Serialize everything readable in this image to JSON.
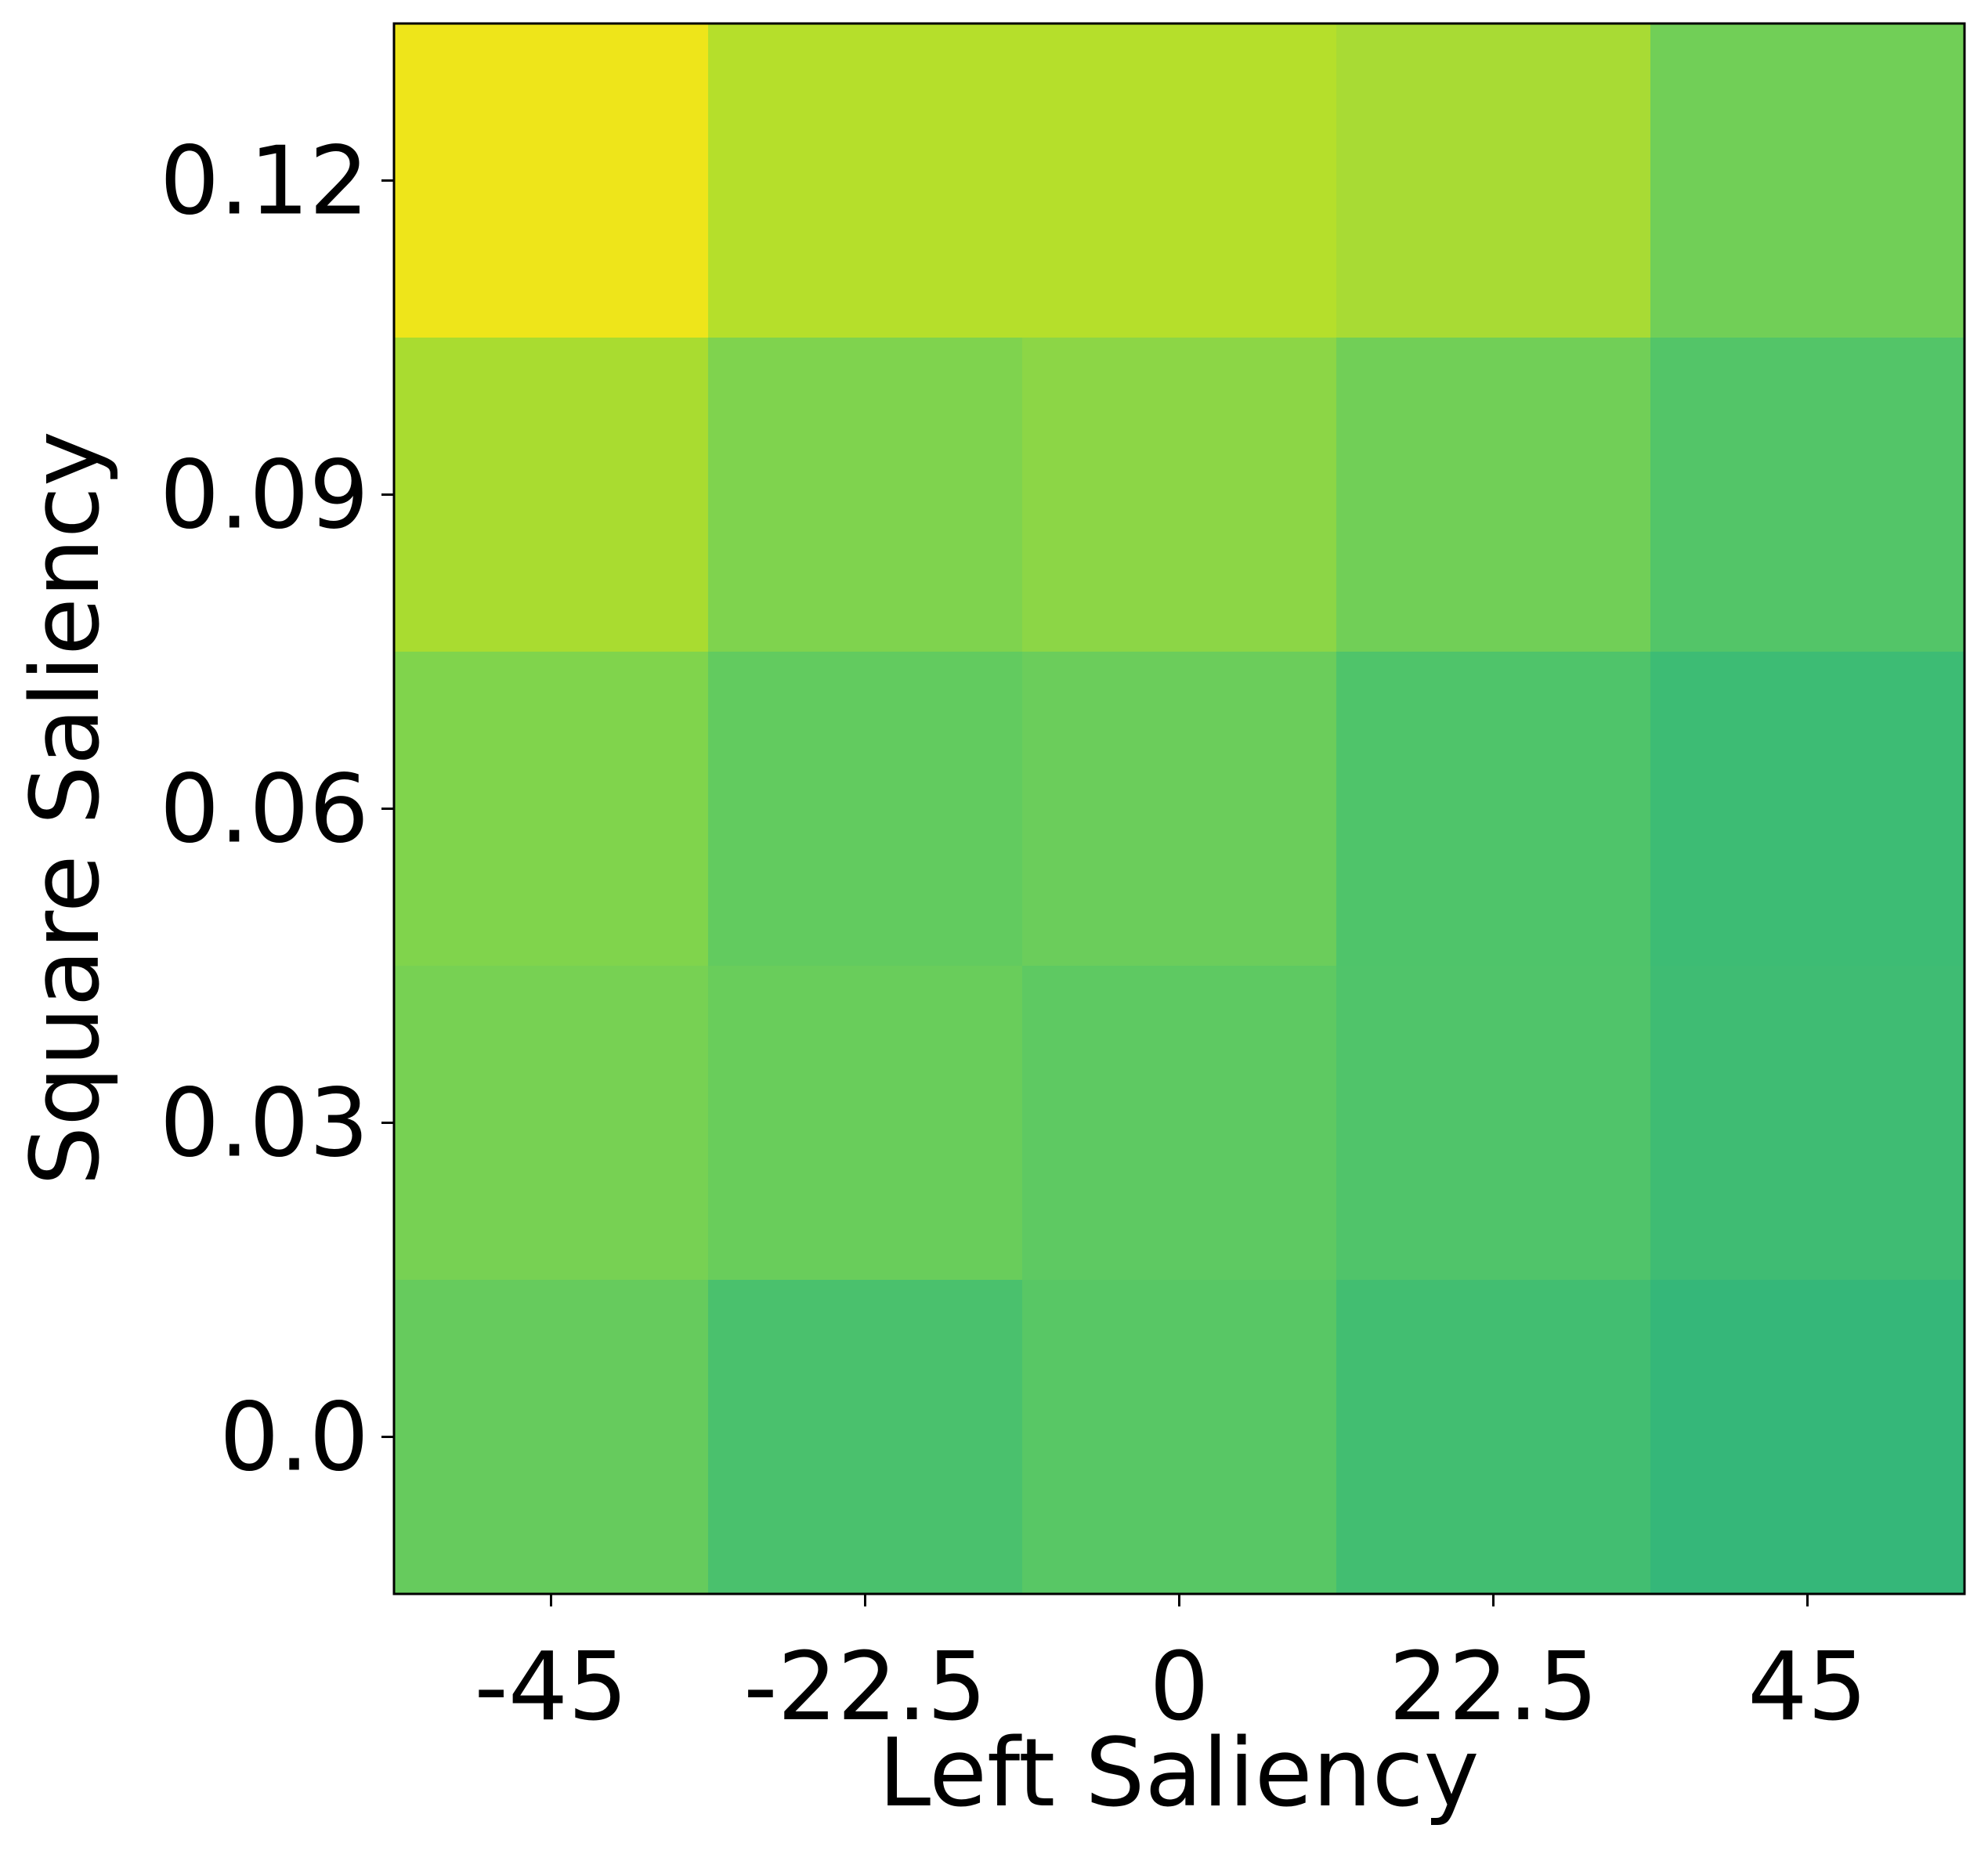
{
  "chart_data": {
    "type": "heatmap",
    "title": "",
    "xlabel": "Left Saliency",
    "ylabel": "Square Saliency",
    "x_ticks": [
      "-45",
      "-22.5",
      "0",
      "22.5",
      "45"
    ],
    "y_ticks": [
      "0.12",
      "0.09",
      "0.06",
      "0.03",
      "0.0"
    ],
    "grid": false,
    "legend": "none",
    "colormap": "viridis",
    "rows": [
      {
        "y": "0.12",
        "cells": [
          {
            "x": "-45",
            "color": "#EEE51A"
          },
          {
            "x": "-22.5",
            "color": "#B5DF2B"
          },
          {
            "x": "0",
            "color": "#B5DF2B"
          },
          {
            "x": "22.5",
            "color": "#A8DB34"
          },
          {
            "x": "45",
            "color": "#71CF57"
          }
        ]
      },
      {
        "y": "0.09",
        "cells": [
          {
            "x": "-45",
            "color": "#A9DC30"
          },
          {
            "x": "-22.5",
            "color": "#7FD34E"
          },
          {
            "x": "0",
            "color": "#8CD646"
          },
          {
            "x": "22.5",
            "color": "#71CF57"
          },
          {
            "x": "45",
            "color": "#53C568"
          }
        ]
      },
      {
        "y": "0.06",
        "cells": [
          {
            "x": "-45",
            "color": "#80D44C"
          },
          {
            "x": "-22.5",
            "color": "#62CB5F"
          },
          {
            "x": "0",
            "color": "#6BCD5B"
          },
          {
            "x": "22.5",
            "color": "#4FC46A"
          },
          {
            "x": "45",
            "color": "#3DBC74"
          }
        ]
      },
      {
        "y": "0.03",
        "cells": [
          {
            "x": "-45",
            "color": "#77D153"
          },
          {
            "x": "-22.5",
            "color": "#69CD5B"
          },
          {
            "x": "0",
            "color": "#5EC962"
          },
          {
            "x": "22.5",
            "color": "#50C46A"
          },
          {
            "x": "45",
            "color": "#3FBC73"
          }
        ]
      },
      {
        "y": "0.0",
        "cells": [
          {
            "x": "-45",
            "color": "#66CB5D"
          },
          {
            "x": "-22.5",
            "color": "#4AC16D"
          },
          {
            "x": "0",
            "color": "#58C765"
          },
          {
            "x": "22.5",
            "color": "#42BE71"
          },
          {
            "x": "45",
            "color": "#35B779"
          }
        ]
      }
    ]
  }
}
